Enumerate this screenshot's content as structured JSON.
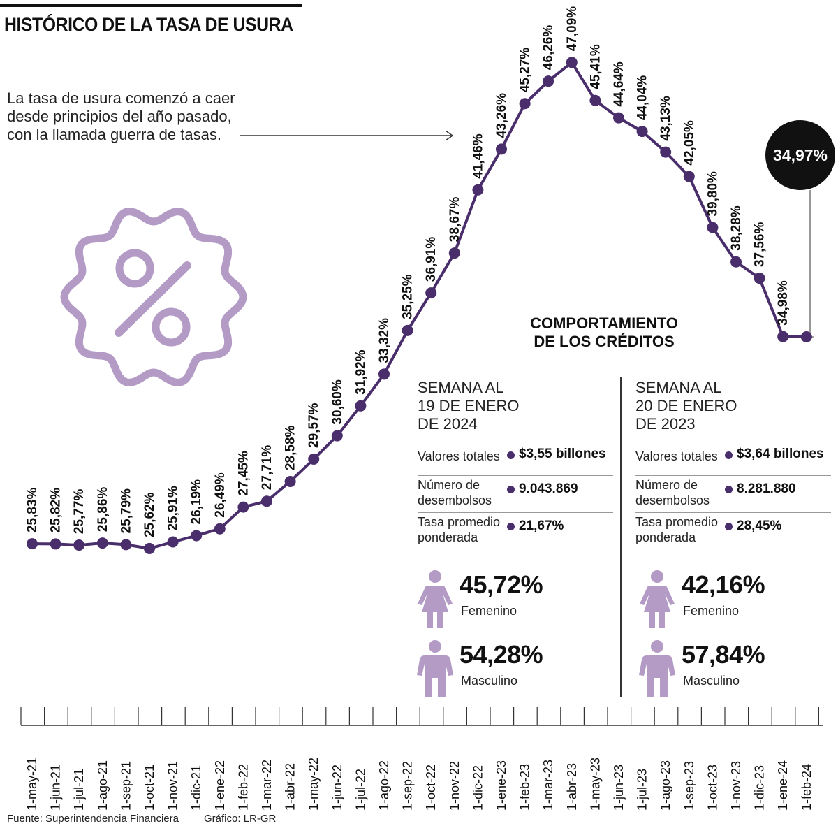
{
  "header": {
    "title": "HISTÓRICO DE LA TASA DE USURA",
    "intro_lines": [
      "La tasa de usura comenzó a caer",
      "desde principios del año pasado,",
      "con la llamada guerra de tasas."
    ]
  },
  "chart_data": {
    "type": "line",
    "title": "HISTÓRICO DE LA TASA DE USURA",
    "x": [
      "1-may-21",
      "1-jun-21",
      "1-jul-21",
      "1-ago-21",
      "1-sep-21",
      "1-oct-21",
      "1-nov-21",
      "1-dic-21",
      "1-ene-22",
      "1-feb-22",
      "1-mar-22",
      "1-abr-22",
      "1-may-22",
      "1-jun-22",
      "1-jul-22",
      "1-ago-22",
      "1-sep-22",
      "1-oct-22",
      "1-nov-22",
      "1-dic-22",
      "1-ene-23",
      "1-feb-23",
      "1-mar-23",
      "1-abr-23",
      "1-may-23",
      "1-jun-23",
      "1-jul-23",
      "1-ago-23",
      "1-sep-23",
      "1-oct-23",
      "1-nov-23",
      "1-dic-23",
      "1-ene-24",
      "1-feb-24"
    ],
    "values": [
      25.83,
      25.82,
      25.77,
      25.86,
      25.79,
      25.62,
      25.91,
      26.19,
      26.49,
      27.45,
      27.71,
      28.58,
      29.57,
      30.6,
      31.92,
      33.32,
      35.25,
      36.91,
      38.67,
      41.46,
      43.26,
      45.27,
      46.26,
      47.09,
      45.41,
      44.64,
      44.04,
      43.13,
      42.05,
      39.8,
      38.28,
      37.56,
      34.98,
      34.97
    ],
    "data_labels": [
      "25,83%",
      "25,82%",
      "25,77%",
      "25,86%",
      "25,79%",
      "25,62%",
      "25,91%",
      "26,19%",
      "26,49%",
      "27,45%",
      "27,71%",
      "28,58%",
      "29,57%",
      "30,60%",
      "31,92%",
      "33,32%",
      "35,25%",
      "36,91%",
      "38,67%",
      "41,46%",
      "43,26%",
      "45,27%",
      "46,26%",
      "47,09%",
      "45,41%",
      "44,64%",
      "44,04%",
      "43,13%",
      "42,05%",
      "39,80%",
      "38,28%",
      "37,56%",
      "34,98%",
      ""
    ],
    "highlight": {
      "label": "34,97%"
    },
    "line_color": "#4a2e6c",
    "xlabel": "",
    "ylabel": ""
  },
  "section": {
    "title_lines": [
      "COMPORTAMIENTO",
      "DE LOS CRÉDITOS"
    ]
  },
  "panels": [
    {
      "head_lines": [
        "SEMANA AL",
        "19 DE ENERO",
        "DE 2024"
      ],
      "rows": [
        {
          "label_lines": [
            "Valores totales"
          ],
          "value": "$3,55 billones"
        },
        {
          "label_lines": [
            "Número de",
            "desembolsos"
          ],
          "value": "9.043.869"
        },
        {
          "label_lines": [
            "Tasa promedio",
            "ponderada"
          ],
          "value": "21,67%"
        }
      ],
      "female": {
        "pct": "45,72%",
        "label": "Femenino"
      },
      "male": {
        "pct": "54,28%",
        "label": "Masculino"
      }
    },
    {
      "head_lines": [
        "SEMANA AL",
        "20 DE ENERO",
        "DE 2023"
      ],
      "rows": [
        {
          "label_lines": [
            "Valores totales"
          ],
          "value": "$3,64 billones"
        },
        {
          "label_lines": [
            "Número de",
            "desembolsos"
          ],
          "value": "8.281.880"
        },
        {
          "label_lines": [
            "Tasa promedio",
            "ponderada"
          ],
          "value": "28,45%"
        }
      ],
      "female": {
        "pct": "42,16%",
        "label": "Femenino"
      },
      "male": {
        "pct": "57,84%",
        "label": "Masculino"
      }
    }
  ],
  "colors": {
    "line": "#4a2e6c",
    "icon": "#b39bc6",
    "callout": "#111111"
  },
  "icons": {
    "badge": "percent-badge-icon",
    "female": "female-person-icon",
    "male": "male-person-icon"
  },
  "footer": {
    "source": "Fuente: Superintendencia Financiera",
    "credit": "Gráfico: LR-GR"
  }
}
